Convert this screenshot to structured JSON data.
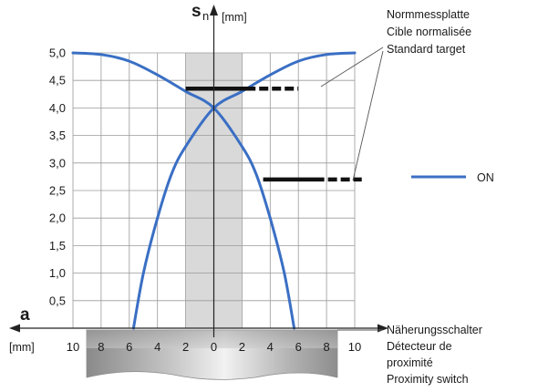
{
  "chart_data": {
    "type": "line",
    "y_axis_symbol": "s",
    "y_axis_subscript": "n",
    "y_axis_unit": "[mm]",
    "x_axis_symbol": "a",
    "x_axis_unit": "[mm]",
    "xlim": [
      -10,
      10
    ],
    "ylim": [
      0,
      5.0
    ],
    "x_ticks": [
      -10,
      -8,
      -6,
      -4,
      -2,
      0,
      2,
      4,
      6,
      8,
      10
    ],
    "x_tick_labels": [
      "10",
      "8",
      "6",
      "4",
      "2",
      "0",
      "2",
      "4",
      "6",
      "8",
      "10"
    ],
    "y_ticks": [
      0.5,
      1.0,
      1.5,
      2.0,
      2.5,
      3.0,
      3.5,
      4.0,
      4.5,
      5.0
    ],
    "y_tick_labels": [
      "0,5",
      "1,0",
      "1,5",
      "2,0",
      "2,5",
      "3,0",
      "3,5",
      "4,0",
      "4,5",
      "5,0"
    ],
    "grid": true,
    "shaded_region_x": [
      -2,
      2
    ],
    "series": [
      {
        "name": "ON",
        "color": "#3a6fc4",
        "curves": [
          [
            [
              -10,
              5.0
            ],
            [
              -8,
              4.97
            ],
            [
              -6,
              4.85
            ],
            [
              -4,
              4.6
            ],
            [
              -2,
              4.3
            ],
            [
              0,
              4.0
            ],
            [
              2,
              3.3
            ],
            [
              3,
              2.8
            ],
            [
              4,
              2.0
            ],
            [
              5,
              1.0
            ],
            [
              5.7,
              0.0
            ]
          ],
          [
            [
              10,
              5.0
            ],
            [
              8,
              4.97
            ],
            [
              6,
              4.85
            ],
            [
              4,
              4.6
            ],
            [
              2,
              4.3
            ],
            [
              0,
              4.0
            ],
            [
              -2,
              3.3
            ],
            [
              -3,
              2.8
            ],
            [
              -4,
              2.0
            ],
            [
              -5,
              1.0
            ],
            [
              -5.7,
              0.0
            ]
          ]
        ]
      }
    ],
    "target_markers": [
      {
        "x_start": -2,
        "x_end": 6,
        "y": 4.35
      },
      {
        "x_start": 3.5,
        "x_end": 10.5,
        "y": 2.7
      }
    ],
    "annotations": {
      "target_lines": [
        "Normmessplatte",
        "Cible normalisée",
        "Standard target"
      ],
      "switch_lines": [
        "Näherungsschalter",
        "Détecteur de",
        "proximité",
        "Proximity switch"
      ]
    }
  }
}
